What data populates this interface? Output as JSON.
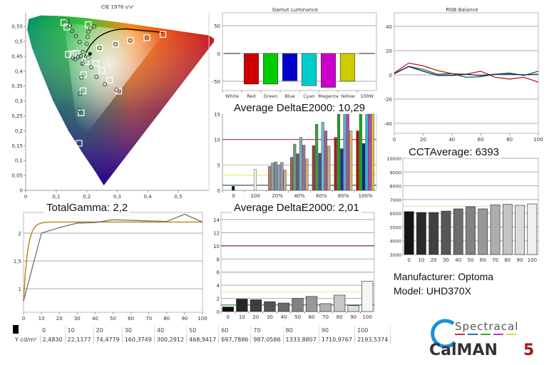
{
  "cie": {
    "title": "CIE 1976 u'v'",
    "x_ticks": [
      "0",
      "0,1",
      "0,2",
      "0,3",
      "0,4",
      "0,5"
    ],
    "y_ticks": [
      "0",
      "0,05",
      "0,1",
      "0,15",
      "0,2",
      "0,25",
      "0,3",
      "0,35",
      "0,4",
      "0,45",
      "0,5",
      "0,55"
    ],
    "gamut_primaries": {
      "red": [
        0.451,
        0.523
      ],
      "green": [
        0.125,
        0.563
      ],
      "blue": [
        0.175,
        0.158
      ]
    },
    "targets": [
      [
        0.125,
        0.563
      ],
      [
        0.135,
        0.548
      ],
      [
        0.205,
        0.556
      ],
      [
        0.45,
        0.523
      ],
      [
        0.397,
        0.512
      ],
      [
        0.343,
        0.503
      ],
      [
        0.295,
        0.491
      ],
      [
        0.242,
        0.478
      ],
      [
        0.14,
        0.456
      ],
      [
        0.155,
        0.458
      ],
      [
        0.165,
        0.46
      ],
      [
        0.2,
        0.45
      ],
      [
        0.197,
        0.432
      ],
      [
        0.23,
        0.426
      ],
      [
        0.25,
        0.402
      ],
      [
        0.19,
        0.388
      ],
      [
        0.275,
        0.37
      ],
      [
        0.188,
        0.334
      ],
      [
        0.305,
        0.333
      ],
      [
        0.182,
        0.26
      ],
      [
        0.175,
        0.158
      ]
    ],
    "measured": [
      [
        0.138,
        0.568
      ],
      [
        0.145,
        0.553
      ],
      [
        0.152,
        0.535
      ],
      [
        0.165,
        0.517
      ],
      [
        0.177,
        0.498
      ],
      [
        0.205,
        0.532
      ],
      [
        0.212,
        0.543
      ],
      [
        0.225,
        0.55
      ],
      [
        0.203,
        0.515
      ],
      [
        0.155,
        0.444
      ],
      [
        0.163,
        0.441
      ],
      [
        0.172,
        0.447
      ],
      [
        0.18,
        0.45
      ],
      [
        0.188,
        0.464
      ],
      [
        0.2,
        0.492
      ],
      [
        0.205,
        0.445
      ],
      [
        0.186,
        0.425
      ],
      [
        0.215,
        0.413
      ],
      [
        0.183,
        0.379
      ],
      [
        0.232,
        0.381
      ],
      [
        0.26,
        0.356
      ],
      [
        0.298,
        0.338
      ],
      [
        0.178,
        0.324
      ],
      [
        0.177,
        0.268
      ],
      [
        0.242,
        0.478
      ],
      [
        0.294,
        0.49
      ],
      [
        0.343,
        0.503
      ],
      [
        0.397,
        0.513
      ]
    ],
    "whitepoint": [
      0.211,
      0.458
    ]
  },
  "gamut_luminance": {
    "title": "Gamut Luminance",
    "y_ticks": [
      "50",
      "0",
      "-50"
    ],
    "categories": [
      "White",
      "Red",
      "Green",
      "Blue",
      "Cyan",
      "Magenta",
      "Yellow",
      "100W"
    ],
    "values": [
      0,
      -55,
      -55,
      -49,
      -58,
      -61,
      -50,
      0
    ],
    "colors": [
      "#dddddd",
      "#cc0000",
      "#00cc00",
      "#0000cc",
      "#00cccc",
      "#cc00cc",
      "#cccc00",
      "#dddddd"
    ],
    "ylim": [
      -70,
      70
    ]
  },
  "deltae_color": {
    "title": "Average DeltaE2000: 10,29",
    "y_ticks": [
      "0",
      "5",
      "10",
      "15"
    ],
    "categories": [
      "0",
      "100",
      "20%",
      "40%",
      "60%",
      "80%",
      "100%"
    ],
    "ylim": [
      0,
      15
    ],
    "thresholds": [
      {
        "value": 10,
        "color": "#b33030"
      },
      {
        "value": 3,
        "color": "#eeee66"
      },
      {
        "value": 1,
        "color": "#336633"
      }
    ],
    "groups": [
      {
        "label": "0",
        "values": [
          0.8
        ],
        "colors": [
          "#111111"
        ]
      },
      {
        "label": "100",
        "values": [
          4.1
        ],
        "colors": [
          "#f4f4f4"
        ]
      },
      {
        "label": "20%",
        "values": [
          4.7,
          5.4,
          5.6,
          5.0,
          5.5,
          4.0
        ],
        "colors": [
          "#b08070",
          "#90a890",
          "#8090b0",
          "#90b0b8",
          "#b090b0",
          "#b8b090"
        ]
      },
      {
        "label": "40%",
        "values": [
          6.5,
          9.1,
          7.2,
          10.4,
          8.9,
          6.2
        ],
        "colors": [
          "#a06060",
          "#70a070",
          "#506090",
          "#80b0b8",
          "#a070a0",
          "#c0b080"
        ]
      },
      {
        "label": "60%",
        "values": [
          8.8,
          13.0,
          7.3,
          13.4,
          11.7,
          8.7
        ],
        "colors": [
          "#904040",
          "#40a040",
          "#405090",
          "#70b8c8",
          "#a060a0",
          "#c8b070"
        ]
      },
      {
        "label": "80%",
        "values": [
          10.4,
          15.0,
          8.2,
          15.0,
          15.0,
          11.7
        ],
        "colors": [
          "#a02020",
          "#20a020",
          "#203090",
          "#50b0c8",
          "#b050b0",
          "#d0c060"
        ]
      },
      {
        "label": "100%",
        "values": [
          11.7,
          15.0,
          9.2,
          15.0,
          15.0,
          15.0
        ],
        "colors": [
          "#b01010",
          "#10b010",
          "#102090",
          "#30b8d0",
          "#c040c0",
          "#d8c840"
        ]
      }
    ]
  },
  "rgb_balance": {
    "title": "RGB Balance",
    "x": [
      0,
      10,
      20,
      30,
      40,
      50,
      60,
      70,
      80,
      90,
      100
    ],
    "x_ticks": [
      "0",
      "20",
      "40",
      "60",
      "80",
      "100"
    ],
    "y_ticks": [
      "40",
      "20",
      "0",
      "-20",
      "-40"
    ],
    "ylim": [
      -50,
      50
    ],
    "series": [
      {
        "name": "red",
        "color": "#c0161c",
        "values": [
          1.5,
          9.7,
          7.5,
          3.5,
          1.0,
          0.5,
          3.0,
          -2.0,
          -3.5,
          -2.0,
          -6.0
        ]
      },
      {
        "name": "green",
        "color": "#1e6a1e",
        "values": [
          1.0,
          7.0,
          4.5,
          0.5,
          1.0,
          -2.0,
          -1.5,
          0.5,
          1.5,
          -0.5,
          3.0
        ]
      },
      {
        "name": "blue",
        "color": "#0d1f8c",
        "values": [
          1.0,
          6.8,
          3.0,
          -0.5,
          -0.5,
          0.5,
          -0.5,
          0.5,
          0.5,
          0.0,
          0.5
        ]
      }
    ]
  },
  "cct": {
    "title": "CCTAverage: 6393",
    "y_ticks": [
      "10000",
      "9000",
      "8000",
      "7000",
      "6000",
      "5000",
      "4000",
      "3000"
    ],
    "ylim": [
      3000,
      10000
    ],
    "target": 6504,
    "categories": [
      "0",
      "10",
      "20",
      "30",
      "40",
      "50",
      "60",
      "70",
      "80",
      "90",
      "100"
    ],
    "values": [
      6120,
      6060,
      6060,
      6160,
      6320,
      6480,
      6320,
      6620,
      6650,
      6580,
      6680
    ]
  },
  "gamma": {
    "title": "TotalGamma: 2,2",
    "x_ticks": [
      "0",
      "10",
      "20",
      "30",
      "40",
      "50",
      "60",
      "70",
      "80",
      "90",
      "100"
    ],
    "y_ticks": [
      "2",
      "1,5",
      "1"
    ],
    "ylim": [
      0.55,
      2.35
    ],
    "x": [
      0,
      10,
      20,
      30,
      40,
      50,
      60,
      70,
      80,
      90,
      100
    ],
    "measured": [
      0.78,
      2.0,
      2.1,
      2.18,
      2.19,
      2.24,
      2.23,
      2.22,
      2.21,
      2.34,
      2.2
    ],
    "target_gamma": 2.2
  },
  "deltae_gray": {
    "title": "Average DeltaE2000: 2,01",
    "y_ticks": [
      "0",
      "2",
      "4",
      "6",
      "8",
      "10",
      "12",
      "14"
    ],
    "ylim": [
      0,
      15
    ],
    "thresholds": [
      {
        "value": 10,
        "color": "#7a1010"
      },
      {
        "value": 3,
        "color": "#eeee88"
      },
      {
        "value": 1,
        "color": "#2e7a2e"
      }
    ],
    "categories": [
      "0",
      "10",
      "20",
      "30",
      "40",
      "50",
      "60",
      "70",
      "80",
      "90",
      "100"
    ],
    "values": [
      0.7,
      1.9,
      1.8,
      1.5,
      1.3,
      2.0,
      2.3,
      1.2,
      2.5,
      0.9,
      4.6
    ]
  },
  "luminance_table": {
    "row_label": "Y cd/m²",
    "headers": [
      "0",
      "10",
      "20",
      "30",
      "40",
      "50",
      "60",
      "70",
      "80",
      "90",
      "100"
    ],
    "values": [
      "2,4830",
      "22,1177",
      "74,4779",
      "160,3749",
      "300,2912",
      "468,9417",
      "697,7886",
      "987,0586",
      "1333,8807",
      "1710,9767",
      "2193,5374"
    ]
  },
  "info": {
    "manufacturer": "Manufacturer: Optoma",
    "model": "Model: UHD370X"
  },
  "logo": {
    "brand_top": "Spectracal",
    "brand_main": "CalMAN",
    "brand_version": "5"
  }
}
